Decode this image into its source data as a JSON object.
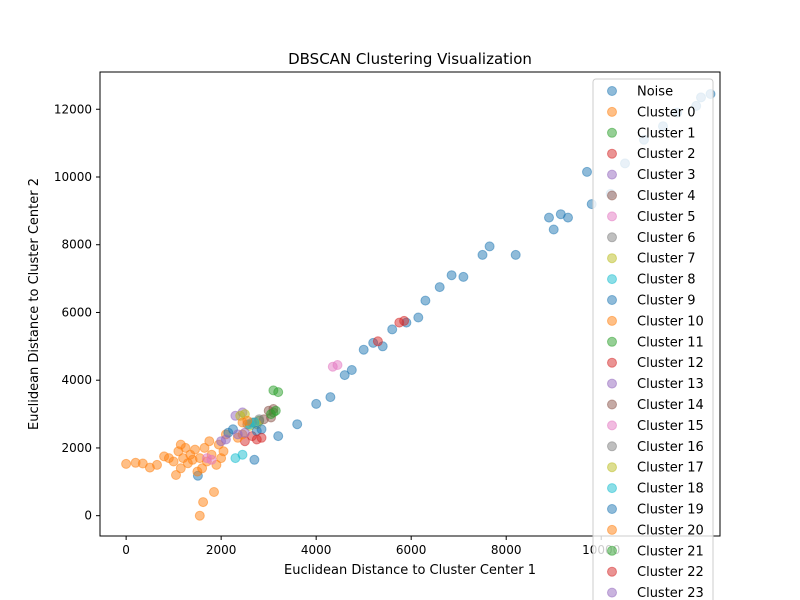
{
  "chart_data": {
    "type": "scatter",
    "title": "DBSCAN Clustering Visualization",
    "xlabel": "Euclidean Distance to Cluster Center 1",
    "ylabel": "Euclidean Distance to Cluster Center 2",
    "xlim": [
      -550,
      12500
    ],
    "ylim": [
      -600,
      13100
    ],
    "xticks": [
      0,
      2000,
      4000,
      6000,
      8000,
      10000
    ],
    "xtick_labels": [
      "0",
      "2000",
      "4000",
      "6000",
      "8000",
      "10000"
    ],
    "yticks": [
      0,
      2000,
      4000,
      6000,
      8000,
      10000,
      12000
    ],
    "ytick_labels": [
      "0",
      "2000",
      "4000",
      "6000",
      "8000",
      "10000",
      "12000"
    ],
    "grid": false,
    "legend_position": "top-right",
    "marker_alpha": 0.5,
    "series": [
      {
        "name": "Noise",
        "color": "#1f77b4",
        "points": [
          [
            1510,
            1180
          ],
          [
            2700,
            1650
          ],
          [
            3200,
            2350
          ],
          [
            3600,
            2700
          ],
          [
            4000,
            3300
          ],
          [
            4300,
            3500
          ],
          [
            4600,
            4150
          ],
          [
            4750,
            4300
          ],
          [
            5000,
            4900
          ],
          [
            5200,
            5100
          ],
          [
            5400,
            5000
          ],
          [
            5600,
            5500
          ],
          [
            5900,
            5700
          ],
          [
            6150,
            5850
          ],
          [
            6300,
            6350
          ],
          [
            6600,
            6750
          ],
          [
            6850,
            7100
          ],
          [
            7100,
            7050
          ],
          [
            7500,
            7700
          ],
          [
            7650,
            7950
          ],
          [
            8200,
            7700
          ],
          [
            8900,
            8800
          ],
          [
            9000,
            8450
          ],
          [
            9150,
            8900
          ],
          [
            9300,
            8800
          ],
          [
            9700,
            10150
          ],
          [
            9800,
            9200
          ],
          [
            10200,
            9500
          ],
          [
            10500,
            10400
          ],
          [
            10900,
            11100
          ],
          [
            11300,
            11500
          ],
          [
            11600,
            11900
          ],
          [
            12100,
            12350
          ],
          [
            12300,
            12450
          ],
          [
            12000,
            12100
          ]
        ]
      },
      {
        "name": "Cluster 0",
        "color": "#ff7f0e",
        "points": [
          [
            0,
            1530
          ],
          [
            200,
            1560
          ],
          [
            350,
            1540
          ],
          [
            500,
            1420
          ],
          [
            650,
            1500
          ],
          [
            800,
            1750
          ],
          [
            900,
            1700
          ],
          [
            1000,
            1600
          ],
          [
            1100,
            1900
          ],
          [
            1150,
            1400
          ],
          [
            1200,
            1700
          ],
          [
            1250,
            2000
          ],
          [
            1300,
            1550
          ],
          [
            1350,
            1800
          ],
          [
            1400,
            1650
          ],
          [
            1450,
            1950
          ],
          [
            1500,
            1300
          ],
          [
            1550,
            1700
          ],
          [
            1600,
            1400
          ],
          [
            1620,
            400
          ],
          [
            1650,
            2000
          ],
          [
            1700,
            1600
          ],
          [
            1750,
            2200
          ],
          [
            1800,
            1800
          ],
          [
            1850,
            700
          ],
          [
            1900,
            1500
          ],
          [
            1950,
            2100
          ],
          [
            2000,
            1700
          ],
          [
            2050,
            1900
          ],
          [
            2100,
            2400
          ],
          [
            1050,
            1200
          ],
          [
            1150,
            2100
          ],
          [
            1550,
            0
          ]
        ]
      },
      {
        "name": "Cluster 1",
        "color": "#2ca02c",
        "points": [
          [
            2800,
            2800
          ],
          [
            3100,
            3050
          ]
        ]
      },
      {
        "name": "Cluster 2",
        "color": "#d62728",
        "points": [
          [
            2500,
            2200
          ],
          [
            2650,
            2350
          ]
        ]
      },
      {
        "name": "Cluster 3",
        "color": "#9467bd",
        "points": [
          [
            2300,
            2950
          ],
          [
            2450,
            3050
          ]
        ]
      },
      {
        "name": "Cluster 4",
        "color": "#8c564b",
        "points": [
          [
            2900,
            2850
          ],
          [
            3050,
            2900
          ]
        ]
      },
      {
        "name": "Cluster 5",
        "color": "#e377c2",
        "points": [
          [
            1700,
            1700
          ],
          [
            1800,
            1650
          ]
        ]
      },
      {
        "name": "Cluster 6",
        "color": "#7f7f7f",
        "points": [
          [
            2700,
            2750
          ],
          [
            2800,
            2850
          ]
        ]
      },
      {
        "name": "Cluster 7",
        "color": "#bcbd22",
        "points": [
          [
            2600,
            2650
          ],
          [
            2750,
            2700
          ]
        ]
      },
      {
        "name": "Cluster 8",
        "color": "#17becf",
        "points": [
          [
            2300,
            1700
          ],
          [
            2450,
            1800
          ]
        ]
      },
      {
        "name": "Cluster 9",
        "color": "#1f77b4",
        "points": [
          [
            2150,
            2450
          ],
          [
            2250,
            2550
          ]
        ]
      },
      {
        "name": "Cluster 10",
        "color": "#ff7f0e",
        "points": [
          [
            2350,
            2300
          ],
          [
            2450,
            2400
          ]
        ]
      },
      {
        "name": "Cluster 11",
        "color": "#2ca02c",
        "points": [
          [
            3100,
            3700
          ],
          [
            3200,
            3650
          ]
        ]
      },
      {
        "name": "Cluster 12",
        "color": "#d62728",
        "points": [
          [
            5750,
            5700
          ],
          [
            5850,
            5750
          ],
          [
            5300,
            5150
          ]
        ]
      },
      {
        "name": "Cluster 13",
        "color": "#9467bd",
        "points": [
          [
            2350,
            2400
          ],
          [
            2500,
            2450
          ]
        ]
      },
      {
        "name": "Cluster 14",
        "color": "#8c564b",
        "points": [
          [
            3000,
            3100
          ],
          [
            3100,
            3150
          ]
        ]
      },
      {
        "name": "Cluster 15",
        "color": "#e377c2",
        "points": [
          [
            4350,
            4400
          ],
          [
            4450,
            4450
          ]
        ]
      },
      {
        "name": "Cluster 16",
        "color": "#7f7f7f",
        "points": [
          [
            2550,
            2700
          ],
          [
            2650,
            2750
          ]
        ]
      },
      {
        "name": "Cluster 17",
        "color": "#bcbd22",
        "points": [
          [
            2400,
            2950
          ],
          [
            2500,
            3000
          ]
        ]
      },
      {
        "name": "Cluster 18",
        "color": "#17becf",
        "points": [
          [
            2600,
            2700
          ],
          [
            2700,
            2750
          ]
        ]
      },
      {
        "name": "Cluster 19",
        "color": "#1f77b4",
        "points": [
          [
            2750,
            2500
          ],
          [
            2850,
            2550
          ]
        ]
      },
      {
        "name": "Cluster 20",
        "color": "#ff7f0e",
        "points": [
          [
            2450,
            2750
          ],
          [
            2550,
            2800
          ]
        ]
      },
      {
        "name": "Cluster 21",
        "color": "#2ca02c",
        "points": [
          [
            3050,
            3000
          ],
          [
            3150,
            3100
          ]
        ]
      },
      {
        "name": "Cluster 22",
        "color": "#d62728",
        "points": [
          [
            2750,
            2250
          ],
          [
            2850,
            2300
          ]
        ]
      },
      {
        "name": "Cluster 23",
        "color": "#9467bd",
        "points": [
          [
            2000,
            2200
          ],
          [
            2100,
            2250
          ]
        ]
      }
    ]
  }
}
